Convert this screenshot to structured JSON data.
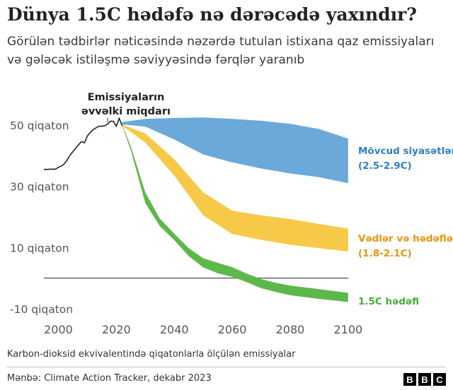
{
  "title": "Dünya 1.5C hədəfə nə dərəcədə yaxındır?",
  "subtitle": "Görülən tədbirlər nəticəsində nəzərdə tutulan istixana qaz emissiyaları və gələcək istiləşmə səviyyəsində fərqlər yaranıb",
  "footnote": "Karbon-dioksid ekvivalentində qiqatonlarla ölçülən emissiyalar",
  "source": "Mənbə: Climate Action Tracker, dekabr 2023",
  "logo": [
    "B",
    "B",
    "C"
  ],
  "colors": {
    "historical": "#222222",
    "current_policies": "#6ba9da",
    "pledges": "#f7c948",
    "target_1_5": "#5db84a",
    "current_policies_label": "#2f7fc1",
    "pledges_label": "#e8950f",
    "target_label": "#4aaa3a",
    "axis_text": "#555555"
  },
  "chart_data": {
    "type": "area",
    "title": "",
    "xlabel": "",
    "ylabel": "",
    "xlim": [
      1995,
      2102
    ],
    "ylim": [
      -12,
      53
    ],
    "x_ticks": [
      {
        "value": 2000,
        "label": "2000"
      },
      {
        "value": 2020,
        "label": "2020"
      },
      {
        "value": 2040,
        "label": "2040"
      },
      {
        "value": 2060,
        "label": "2060"
      },
      {
        "value": 2080,
        "label": "2080"
      },
      {
        "value": 2100,
        "label": "2100"
      }
    ],
    "y_ticks": [
      {
        "value": 50,
        "label": "50 qiqaton"
      },
      {
        "value": 30,
        "label": "30 qiqaton"
      },
      {
        "value": 10,
        "label": "10 qiqaton"
      },
      {
        "value": -10,
        "label": "-10 qiqaton"
      }
    ],
    "zero_line": 0,
    "annotation": {
      "text": [
        "Emissiyaların",
        "əvvəlki miqdarı"
      ],
      "x": 2017,
      "y": 51
    },
    "historical": {
      "x": [
        1995,
        1996,
        1997,
        1998,
        1999,
        2000,
        2001,
        2002,
        2003,
        2004,
        2005,
        2006,
        2007,
        2008,
        2009,
        2010,
        2011,
        2012,
        2013,
        2014,
        2015,
        2016,
        2017,
        2018,
        2019,
        2020,
        2021,
        2022
      ],
      "y": [
        35.5,
        35.5,
        35.6,
        35.6,
        35.6,
        36.2,
        36.6,
        37.3,
        38.5,
        40.1,
        41.3,
        42.5,
        43.6,
        44.6,
        44.2,
        46.4,
        47.6,
        48.5,
        49.1,
        49.6,
        49.6,
        49.8,
        50.3,
        51.3,
        51.2,
        49.6,
        52.2,
        49.8
      ]
    },
    "series": [
      {
        "name": "Mövcud siyasətlər",
        "label_lines": [
          "Mövcud siyasətlər",
          "(2.5-2.9C)"
        ],
        "x": [
          2022,
          2030,
          2040,
          2050,
          2060,
          2070,
          2080,
          2090,
          2100
        ],
        "upper": [
          51.0,
          52.0,
          52.3,
          52.5,
          52.0,
          51.4,
          50.4,
          48.7,
          45.6
        ],
        "lower": [
          50.2,
          49.5,
          45.3,
          40.4,
          37.8,
          35.8,
          34.2,
          33.0,
          31.0
        ]
      },
      {
        "name": "Vədlər və hədəflər",
        "label_lines": [
          "Vədlər və hədəflər",
          "(1.8-2.1C)"
        ],
        "x": [
          2022,
          2030,
          2040,
          2050,
          2060,
          2070,
          2080,
          2090,
          2100
        ],
        "upper": [
          50.2,
          47.3,
          38.8,
          28.0,
          22.0,
          20.5,
          19.3,
          17.7,
          16.2
        ],
        "lower": [
          49.8,
          44.3,
          33.5,
          20.5,
          14.4,
          12.5,
          10.9,
          9.8,
          8.7
        ]
      },
      {
        "name": "1.5C hədəfi",
        "label_lines": [
          "1.5C hədəfi"
        ],
        "x": [
          2022,
          2025,
          2030,
          2035,
          2040,
          2045,
          2050,
          2055,
          2060,
          2065,
          2070,
          2075,
          2080,
          2085,
          2090,
          2095,
          2100
        ],
        "upper": [
          50.2,
          43.0,
          28.0,
          19.5,
          14.5,
          9.8,
          6.5,
          5.0,
          3.6,
          1.5,
          -0.3,
          -1.5,
          -2.4,
          -3.0,
          -3.6,
          -4.2,
          -4.8
        ],
        "lower": [
          49.8,
          41.8,
          24.5,
          17.0,
          12.4,
          7.2,
          3.5,
          1.6,
          0.4,
          -1.3,
          -3.3,
          -4.5,
          -5.6,
          -6.2,
          -6.8,
          -7.3,
          -7.8
        ]
      }
    ]
  }
}
